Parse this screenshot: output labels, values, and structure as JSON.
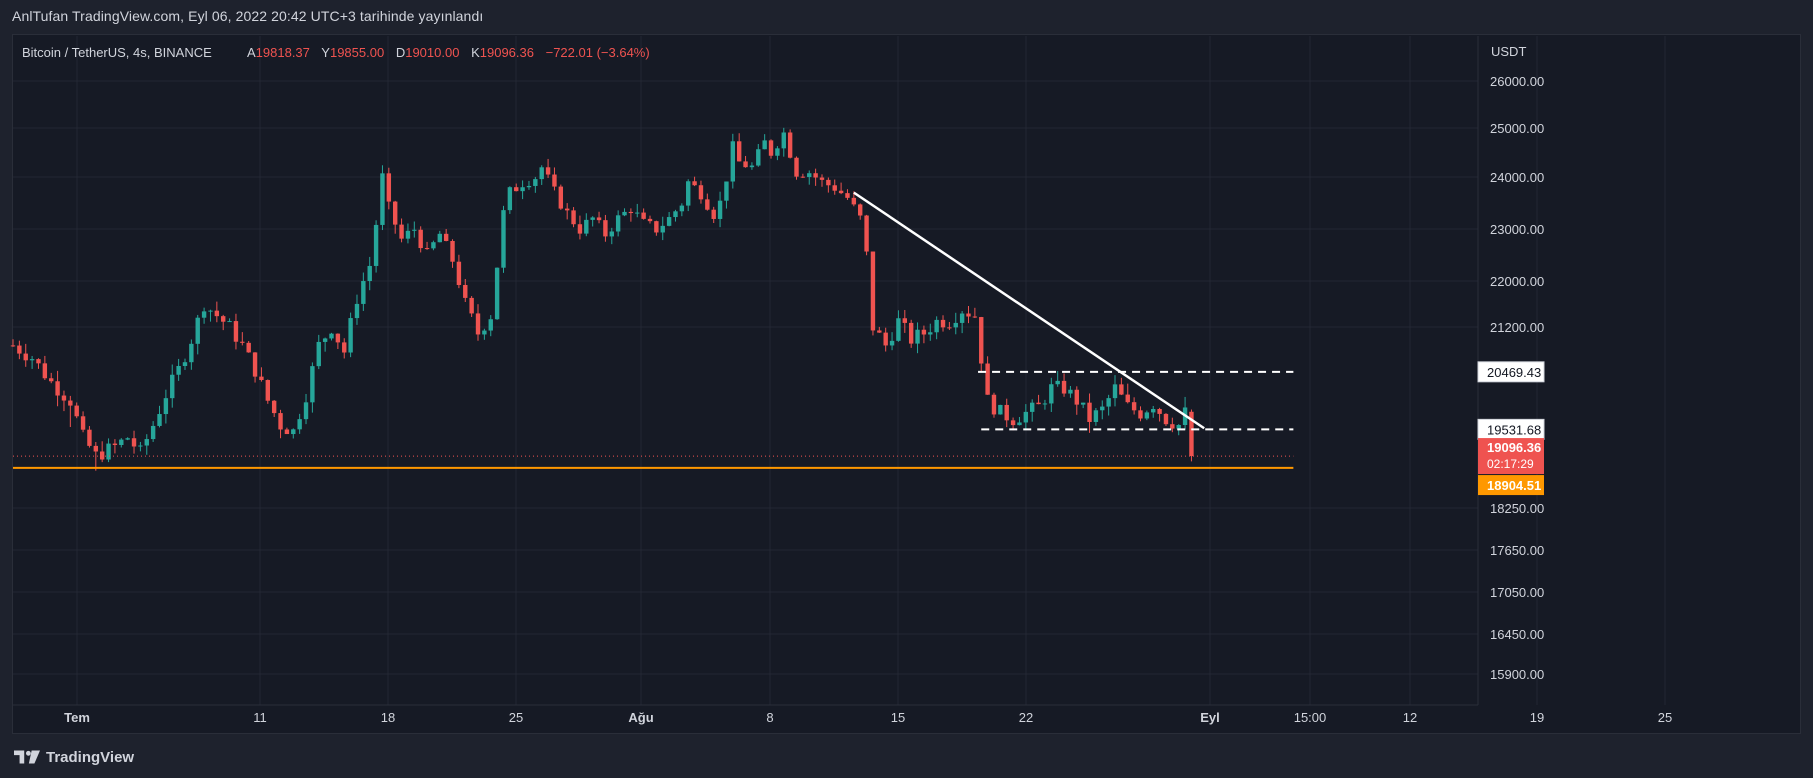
{
  "header": {
    "publisher_line": "AnlTufan TradingView.com, Eyl 06, 2022 20:42 UTC+3 tarihinde yayınlandı"
  },
  "legend": {
    "symbol": "Bitcoin / TetherUS, 4s, BINANCE",
    "open_label": "A",
    "open_value": "19818.37",
    "high_label": "Y",
    "high_value": "19855.00",
    "low_label": "D",
    "low_value": "19010.00",
    "close_label": "K",
    "close_value": "19096.36",
    "change": "−722.01 (−3.64%)"
  },
  "footer": {
    "brand": "TradingView"
  },
  "colors": {
    "up": "#26a69a",
    "down": "#ef5350",
    "support": "#ff9800",
    "axis_text": "#d1d4dc",
    "grid": "#232734",
    "background": "#161a25"
  },
  "chart_data": {
    "type": "candlestick",
    "symbol": "BTCUSDT",
    "interval": "4s",
    "exchange": "BINANCE",
    "currency_label": "USDT",
    "y_ticks": [
      "26000.00",
      "25000.00",
      "24000.00",
      "23000.00",
      "22000.00",
      "21200.00",
      "18250.00",
      "17650.00",
      "17050.00",
      "16450.00",
      "15900.00"
    ],
    "x_ticks": [
      "Tem",
      "11",
      "18",
      "25",
      "Ağu",
      "8",
      "15",
      "22",
      "Eyl",
      "15:00",
      "12",
      "19",
      "25"
    ],
    "price_labels": {
      "resistance": "20469.43",
      "support": "19531.68",
      "last": "19096.36",
      "countdown": "02:17:29",
      "horizontal_line": "18904.51"
    },
    "path": [
      [
        0,
        20900
      ],
      [
        3,
        20700
      ],
      [
        6,
        20300
      ],
      [
        9,
        20000
      ],
      [
        11,
        19400
      ],
      [
        13,
        19100
      ],
      [
        16,
        19250
      ],
      [
        18,
        19400
      ],
      [
        20,
        19150
      ],
      [
        22,
        19600
      ],
      [
        24,
        20100
      ],
      [
        26,
        20500
      ],
      [
        28,
        21000
      ],
      [
        30,
        21600
      ],
      [
        32,
        21400
      ],
      [
        34,
        21200
      ],
      [
        36,
        20900
      ],
      [
        38,
        20500
      ],
      [
        40,
        20000
      ],
      [
        42,
        19600
      ],
      [
        44,
        19500
      ],
      [
        46,
        20100
      ],
      [
        48,
        20900
      ],
      [
        50,
        21200
      ],
      [
        52,
        20800
      ],
      [
        54,
        21700
      ],
      [
        56,
        22300
      ],
      [
        57,
        23100
      ],
      [
        58,
        24000
      ],
      [
        59,
        23400
      ],
      [
        61,
        22800
      ],
      [
        63,
        23000
      ],
      [
        65,
        22500
      ],
      [
        67,
        22900
      ],
      [
        69,
        22400
      ],
      [
        71,
        21600
      ],
      [
        73,
        21100
      ],
      [
        75,
        21400
      ],
      [
        76,
        22300
      ],
      [
        77,
        23300
      ],
      [
        78,
        23700
      ],
      [
        80,
        23900
      ],
      [
        82,
        24000
      ],
      [
        83,
        24200
      ],
      [
        85,
        23700
      ],
      [
        87,
        23300
      ],
      [
        89,
        23000
      ],
      [
        91,
        23200
      ],
      [
        93,
        22900
      ],
      [
        95,
        23200
      ],
      [
        97,
        23400
      ],
      [
        99,
        23100
      ],
      [
        101,
        23000
      ],
      [
        103,
        23200
      ],
      [
        105,
        23500
      ],
      [
        106,
        23900
      ],
      [
        108,
        23700
      ],
      [
        110,
        23300
      ],
      [
        111,
        23500
      ],
      [
        112,
        24000
      ],
      [
        113,
        24600
      ],
      [
        114,
        24300
      ],
      [
        116,
        24200
      ],
      [
        118,
        24700
      ],
      [
        119,
        24500
      ],
      [
        121,
        24900
      ],
      [
        122,
        24500
      ],
      [
        123,
        24100
      ],
      [
        125,
        24100
      ],
      [
        127,
        23900
      ],
      [
        129,
        23800
      ],
      [
        131,
        23600
      ],
      [
        133,
        23200
      ],
      [
        134,
        22500
      ],
      [
        135,
        21200
      ],
      [
        137,
        20900
      ],
      [
        139,
        21300
      ],
      [
        141,
        21000
      ],
      [
        143,
        21100
      ],
      [
        145,
        21300
      ],
      [
        147,
        21300
      ],
      [
        149,
        21500
      ],
      [
        151,
        21400
      ],
      [
        152,
        20700
      ],
      [
        153,
        20000
      ],
      [
        155,
        19800
      ],
      [
        157,
        19700
      ],
      [
        159,
        19800
      ],
      [
        161,
        19900
      ],
      [
        163,
        20200
      ],
      [
        165,
        20200
      ],
      [
        167,
        20000
      ],
      [
        169,
        19700
      ],
      [
        171,
        19850
      ],
      [
        173,
        20200
      ],
      [
        175,
        19900
      ],
      [
        177,
        19800
      ],
      [
        179,
        19950
      ],
      [
        181,
        19700
      ],
      [
        183,
        19600
      ],
      [
        184,
        19800
      ],
      [
        185,
        19100
      ]
    ],
    "horizontal_lines": [
      {
        "label": "resistance",
        "value": 20469.43,
        "style": "dashed",
        "from": 151.5,
        "to": 201
      },
      {
        "label": "support",
        "value": 19531.68,
        "style": "dashed",
        "from": 152,
        "to": 201
      },
      {
        "label": "horizontal_line",
        "value": 18904.51,
        "style": "solid",
        "from": 0,
        "to": 201
      },
      {
        "label": "last",
        "value": 19096.36,
        "style": "dotted",
        "from": 0,
        "to": 201
      }
    ],
    "trendline": {
      "from": [
        132,
        23700
      ],
      "to": [
        187,
        19550
      ]
    },
    "grid": true
  }
}
